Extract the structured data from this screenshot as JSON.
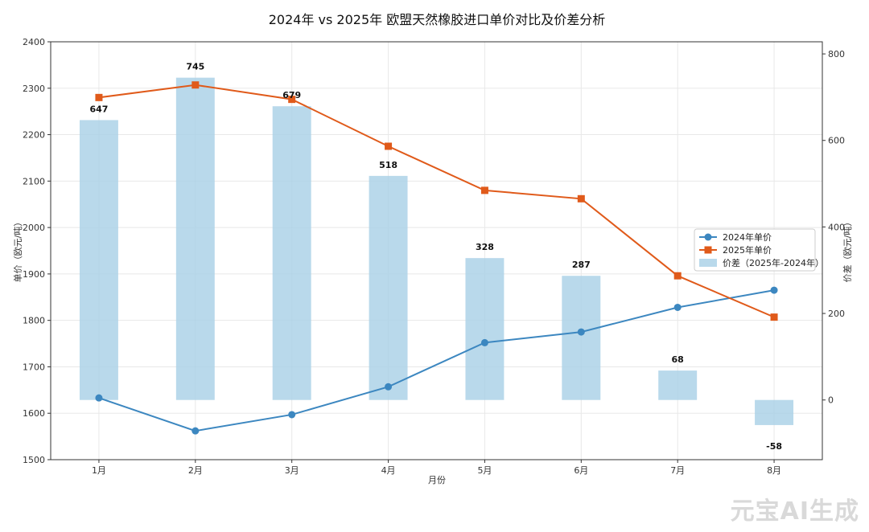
{
  "chart_data": {
    "type": "bar",
    "title": "2024年 vs 2025年 欧盟天然橡胶进口单价对比及价差分析",
    "xlabel": "月份",
    "ylabel": "单价（欧元/吨）",
    "ylabel_right": "价差（欧元/吨）",
    "categories": [
      "1月",
      "2月",
      "3月",
      "4月",
      "5月",
      "6月",
      "7月",
      "8月"
    ],
    "ylim": [
      1500,
      2400
    ],
    "yticks": [
      1500,
      1600,
      1700,
      1800,
      1900,
      2000,
      2100,
      2200,
      2300,
      2400
    ],
    "ylim_right": [
      -138,
      828
    ],
    "yticks_right": [
      0,
      200,
      400,
      600,
      800
    ],
    "grid": true,
    "legend_position": "center-right",
    "series": [
      {
        "name": "2024年单价",
        "kind": "line",
        "marker": "circle",
        "axis": "left",
        "color": "#3c87c0",
        "values": [
          1633,
          1562,
          1597,
          1657,
          1752,
          1775,
          1828,
          1865
        ]
      },
      {
        "name": "2025年单价",
        "kind": "line",
        "marker": "square",
        "axis": "left",
        "color": "#e05a1a",
        "values": [
          2280,
          2307,
          2276,
          2175,
          2080,
          2062,
          1896,
          1807
        ]
      },
      {
        "name": "价差（2025年-2024年）",
        "kind": "bar",
        "axis": "right",
        "color": "#a8cfe6",
        "values": [
          647,
          745,
          679,
          518,
          328,
          287,
          68,
          -58
        ]
      }
    ],
    "data_labels": [
      "647",
      "745",
      "679",
      "518",
      "328",
      "287",
      "68",
      "-58"
    ]
  },
  "watermark": "元宝AI生成"
}
